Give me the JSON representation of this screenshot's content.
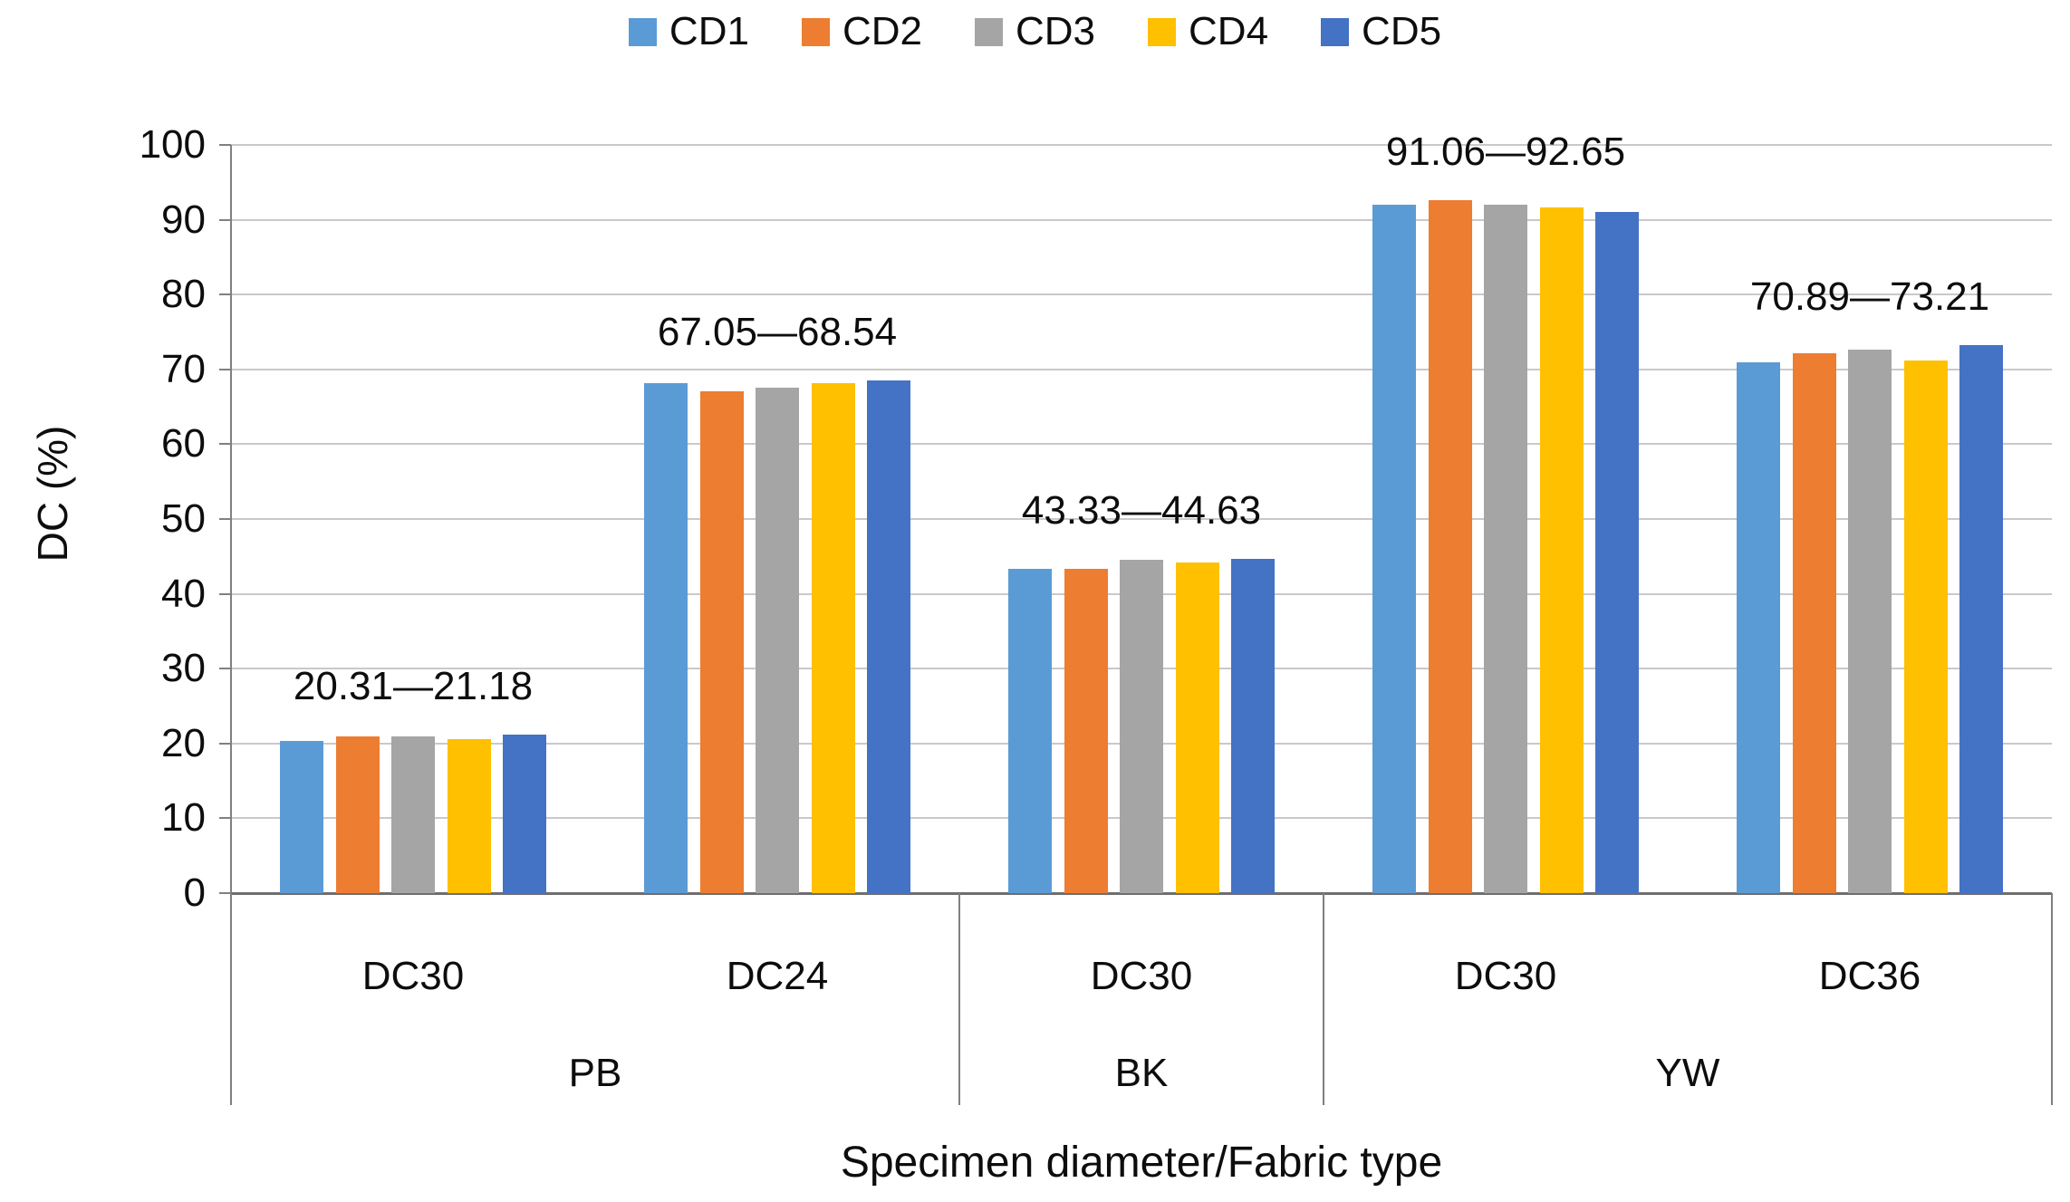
{
  "chart_data": {
    "type": "bar",
    "xlabel": "Specimen diameter/Fabric type",
    "ylabel": "DC (%)",
    "ylim": [
      0,
      100
    ],
    "yticks": [
      0,
      10,
      20,
      30,
      40,
      50,
      60,
      70,
      80,
      90,
      100
    ],
    "grid": true,
    "legend_position": "top",
    "series": [
      {
        "name": "CD1",
        "color": "#5B9BD5",
        "values": [
          20.31,
          68.1,
          43.4,
          92.0,
          70.89
        ]
      },
      {
        "name": "CD2",
        "color": "#ED7D31",
        "values": [
          20.95,
          67.05,
          43.33,
          92.65,
          72.1
        ]
      },
      {
        "name": "CD3",
        "color": "#A5A5A5",
        "values": [
          20.95,
          67.6,
          44.5,
          92.0,
          72.6
        ]
      },
      {
        "name": "CD4",
        "color": "#FFC000",
        "values": [
          20.55,
          68.2,
          44.2,
          91.7,
          71.2
        ]
      },
      {
        "name": "CD5",
        "color": "#4472C4",
        "values": [
          21.18,
          68.54,
          44.63,
          91.06,
          73.21
        ]
      }
    ],
    "groups": [
      {
        "diameter": "DC30",
        "fabric": "PB"
      },
      {
        "diameter": "DC24",
        "fabric": "PB"
      },
      {
        "diameter": "DC30",
        "fabric": "BK"
      },
      {
        "diameter": "DC30",
        "fabric": "YW"
      },
      {
        "diameter": "DC36",
        "fabric": "YW"
      }
    ],
    "fabric_spans": [
      {
        "label": "PB",
        "groups": 2
      },
      {
        "label": "BK",
        "groups": 1
      },
      {
        "label": "YW",
        "groups": 2
      }
    ],
    "range_labels": [
      "20.31—21.18",
      "67.05—68.54",
      "43.33—44.63",
      "91.06—92.65",
      "70.89—73.21"
    ]
  }
}
